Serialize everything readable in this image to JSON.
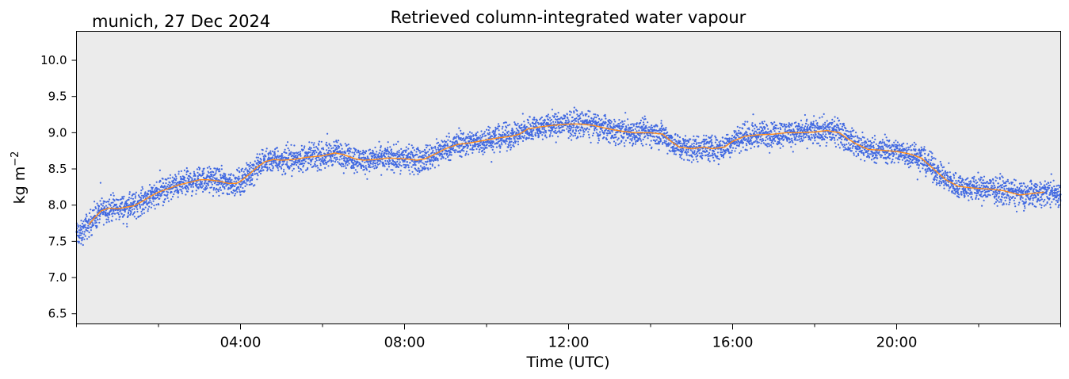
{
  "chart_data": {
    "type": "scatter",
    "title": "Retrieved column-integrated water vapour",
    "subtitle": "munich, 27 Dec 2024",
    "xlabel": "Time (UTC)",
    "ylabel": "kg m",
    "ylabel_superscript": "−2",
    "xlim": [
      0,
      24
    ],
    "ylim": [
      6.36,
      10.4
    ],
    "xticks": [
      {
        "value": 4,
        "label": "04:00"
      },
      {
        "value": 8,
        "label": "08:00"
      },
      {
        "value": 12,
        "label": "12:00"
      },
      {
        "value": 16,
        "label": "16:00"
      },
      {
        "value": 20,
        "label": "20:00"
      }
    ],
    "xticks_minor": [
      0,
      2,
      6,
      10,
      14,
      18,
      22,
      24
    ],
    "yticks": [
      {
        "value": 6.5,
        "label": "6.5"
      },
      {
        "value": 7.0,
        "label": "7.0"
      },
      {
        "value": 7.5,
        "label": "7.5"
      },
      {
        "value": 8.0,
        "label": "8.0"
      },
      {
        "value": 8.5,
        "label": "8.5"
      },
      {
        "value": 9.0,
        "label": "9.0"
      },
      {
        "value": 9.5,
        "label": "9.5"
      },
      {
        "value": 10.0,
        "label": "10.0"
      }
    ],
    "grid": false,
    "background_color": "#ebebeb",
    "series": [
      {
        "kind": "scatter",
        "color": "#4169e1",
        "x": [
          0.0,
          0.1,
          0.2,
          0.3,
          0.4,
          0.6,
          0.8,
          1.0,
          1.2,
          1.4,
          1.6,
          1.8,
          2.0,
          2.2,
          2.5,
          2.8,
          3.0,
          3.2,
          3.5,
          3.7,
          3.9,
          4.0,
          4.2,
          4.4,
          4.6,
          4.8,
          5.0,
          5.3,
          5.6,
          6.0,
          6.3,
          6.5,
          6.8,
          7.0,
          7.3,
          7.6,
          8.0,
          8.3,
          8.5,
          8.8,
          9.0,
          9.3,
          9.6,
          10.0,
          10.3,
          10.6,
          10.8,
          11.0,
          11.3,
          11.6,
          12.0,
          12.3,
          12.6,
          13.0,
          13.3,
          13.6,
          14.0,
          14.3,
          14.5,
          14.7,
          15.0,
          15.3,
          15.5,
          15.8,
          16.0,
          16.3,
          16.6,
          17.0,
          17.3,
          17.6,
          18.0,
          18.3,
          18.6,
          18.8,
          19.0,
          19.3,
          19.6,
          20.0,
          20.3,
          20.6,
          20.8,
          21.0,
          21.2,
          21.5,
          21.8,
          22.0,
          22.3,
          22.6,
          23.0,
          23.3,
          23.6,
          24.0
        ],
        "y": [
          7.62,
          7.58,
          7.68,
          7.73,
          7.8,
          7.92,
          7.96,
          7.95,
          7.97,
          7.99,
          8.05,
          8.12,
          8.18,
          8.22,
          8.28,
          8.32,
          8.35,
          8.35,
          8.33,
          8.3,
          8.3,
          8.33,
          8.42,
          8.52,
          8.6,
          8.63,
          8.62,
          8.63,
          8.66,
          8.68,
          8.72,
          8.7,
          8.64,
          8.62,
          8.63,
          8.65,
          8.64,
          8.62,
          8.64,
          8.72,
          8.78,
          8.84,
          8.86,
          8.9,
          8.93,
          8.95,
          8.98,
          9.05,
          9.08,
          9.1,
          9.12,
          9.12,
          9.1,
          9.05,
          9.02,
          9.0,
          9.0,
          8.98,
          8.88,
          8.8,
          8.78,
          8.8,
          8.78,
          8.8,
          8.88,
          8.95,
          8.97,
          8.98,
          9.0,
          9.0,
          9.01,
          9.03,
          9.0,
          8.92,
          8.85,
          8.77,
          8.76,
          8.74,
          8.71,
          8.65,
          8.55,
          8.45,
          8.35,
          8.26,
          8.24,
          8.23,
          8.22,
          8.2,
          8.14,
          8.16,
          8.18,
          8.15
        ]
      },
      {
        "kind": "line",
        "color": "#ff8c1a",
        "x": [
          0.3,
          0.4,
          0.6,
          0.8,
          1.0,
          1.2,
          1.4,
          1.6,
          1.8,
          2.0,
          2.2,
          2.5,
          2.8,
          3.0,
          3.2,
          3.5,
          3.7,
          3.9,
          4.0,
          4.2,
          4.4,
          4.6,
          4.8,
          5.0,
          5.3,
          5.6,
          6.0,
          6.3,
          6.5,
          6.8,
          7.0,
          7.3,
          7.6,
          8.0,
          8.3,
          8.5,
          8.8,
          9.0,
          9.3,
          9.6,
          10.0,
          10.3,
          10.6,
          10.8,
          11.0,
          11.3,
          11.6,
          12.0,
          12.3,
          12.6,
          13.0,
          13.3,
          13.6,
          14.0,
          14.3,
          14.5,
          14.7,
          15.0,
          15.3,
          15.5,
          15.8,
          16.0,
          16.3,
          16.6,
          17.0,
          17.3,
          17.6,
          18.0,
          18.3,
          18.6,
          18.8,
          19.0,
          19.3,
          19.6,
          20.0,
          20.3,
          20.6,
          20.8,
          21.0,
          21.2,
          21.5,
          21.8,
          22.0,
          22.3,
          22.6,
          23.0,
          23.3,
          23.6
        ],
        "y": [
          7.73,
          7.8,
          7.92,
          7.96,
          7.95,
          7.97,
          7.99,
          8.05,
          8.12,
          8.18,
          8.22,
          8.28,
          8.32,
          8.35,
          8.35,
          8.33,
          8.3,
          8.3,
          8.33,
          8.42,
          8.52,
          8.6,
          8.63,
          8.62,
          8.63,
          8.66,
          8.68,
          8.72,
          8.7,
          8.64,
          8.62,
          8.63,
          8.65,
          8.64,
          8.62,
          8.64,
          8.72,
          8.78,
          8.84,
          8.86,
          8.9,
          8.93,
          8.95,
          8.98,
          9.05,
          9.08,
          9.1,
          9.12,
          9.12,
          9.1,
          9.05,
          9.02,
          9.0,
          9.0,
          8.98,
          8.88,
          8.8,
          8.78,
          8.8,
          8.78,
          8.8,
          8.88,
          8.95,
          8.97,
          8.98,
          9.0,
          9.0,
          9.01,
          9.03,
          9.0,
          8.92,
          8.85,
          8.77,
          8.76,
          8.74,
          8.71,
          8.65,
          8.55,
          8.45,
          8.35,
          8.26,
          8.24,
          8.23,
          8.22,
          8.2,
          8.14,
          8.16,
          8.18
        ]
      }
    ]
  }
}
